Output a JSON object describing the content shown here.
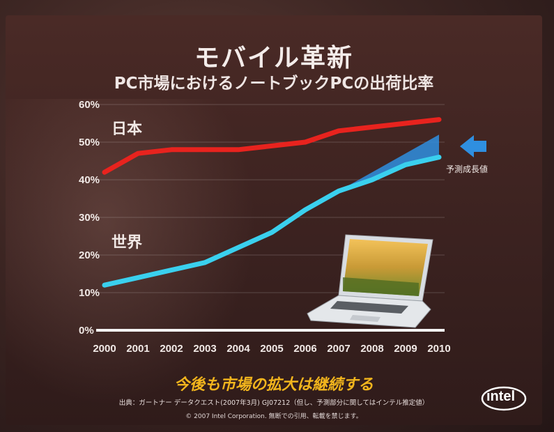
{
  "slide": {
    "title": "モバイル革新",
    "subtitle": "PC市場におけるノートブックPCの出荷比率",
    "tagline": "今後も市場の拡大は継続する",
    "source": "出典：ガートナー データクエスト(2007年3月) GJ07212（但し、予測部分に関してはインテル推定値）",
    "copyright": "© 2007 Intel Corporation. 無断での引用、転載を禁じます。",
    "logo_text": "intel",
    "forecast_note": "予測成長値"
  },
  "colors": {
    "japan": "#e8231e",
    "world": "#3ad0ee",
    "forecast": "#2f8fe0",
    "tagline": "#f2b51d"
  },
  "icons": [
    "forecast-arrow-icon",
    "laptop-image",
    "intel-logo"
  ],
  "chart_data": {
    "type": "line",
    "x": [
      "2000",
      "2001",
      "2002",
      "2003",
      "2004",
      "2005",
      "2006",
      "2007",
      "2008",
      "2009",
      "2010"
    ],
    "yticks": [
      "0%",
      "10%",
      "20%",
      "30%",
      "40%",
      "50%",
      "60%"
    ],
    "ylim": [
      0,
      60
    ],
    "series": [
      {
        "name": "日本",
        "values": [
          42,
          47,
          48,
          48,
          48,
          49,
          50,
          53,
          54,
          55,
          56
        ]
      },
      {
        "name": "世界",
        "values": [
          12,
          14,
          16,
          18,
          22,
          26,
          32,
          37,
          40,
          44,
          46
        ]
      }
    ],
    "forecast_band": {
      "x": [
        "2007",
        "2008",
        "2009",
        "2010"
      ],
      "upper": [
        37,
        42,
        47,
        52
      ]
    }
  }
}
